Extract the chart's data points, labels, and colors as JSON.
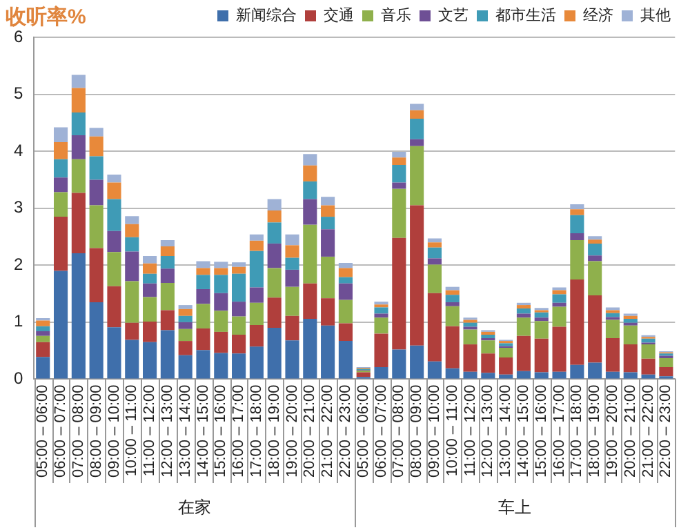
{
  "chart_data": {
    "type": "bar",
    "stacked": true,
    "title": "收听率%",
    "categories": [
      "05:00 – 06:00",
      "06:00 – 07:00",
      "07:00 – 08:00",
      "08:00 – 09:00",
      "09:00 – 10:00",
      "10:00 – 11:00",
      "11:00 – 12:00",
      "12:00 – 13:00",
      "13:00 – 14:00",
      "14:00 – 15:00",
      "15:00 – 16:00",
      "16:00 – 17:00",
      "17:00 – 18:00",
      "18:00 – 19:00",
      "19:00 – 20:00",
      "20:00 – 21:00",
      "21:00 – 22:00",
      "22:00 – 23:00",
      "05:00 – 06:00",
      "06:00 – 07:00",
      "07:00 – 08:00",
      "08:00 – 09:00",
      "09:00 – 10:00",
      "10:00 – 11:00",
      "11:00 – 12:00",
      "12:00 – 13:00",
      "13:00 – 14:00",
      "14:00 – 15:00",
      "15:00 – 16:00",
      "16:00 – 17:00",
      "17:00 – 18:00",
      "18:00 – 19:00",
      "19:00 – 20:00",
      "20:00 – 21:00",
      "21:00 – 22:00",
      "22:00 – 23:00"
    ],
    "annotations": [
      "在家",
      "车上"
    ],
    "series": [
      {
        "name": "新闻综合",
        "color": "#3f6fab",
        "values": [
          0.39,
          1.9,
          2.21,
          1.35,
          0.91,
          0.69,
          0.65,
          0.86,
          0.42,
          0.51,
          0.46,
          0.45,
          0.57,
          0.9,
          0.68,
          1.06,
          0.94,
          0.67,
          0.04,
          0.21,
          0.52,
          0.59,
          0.31,
          0.19,
          0.13,
          0.11,
          0.08,
          0.14,
          0.12,
          0.13,
          0.25,
          0.29,
          0.13,
          0.12,
          0.08,
          0.05
        ]
      },
      {
        "name": "交通",
        "color": "#b03f3c",
        "values": [
          0.26,
          0.95,
          1.06,
          0.95,
          0.72,
          0.3,
          0.36,
          0.35,
          0.25,
          0.38,
          0.37,
          0.33,
          0.38,
          0.53,
          0.43,
          0.62,
          0.48,
          0.31,
          0.08,
          0.59,
          1.96,
          2.46,
          1.2,
          0.74,
          0.48,
          0.34,
          0.3,
          0.62,
          0.59,
          0.79,
          1.5,
          1.18,
          0.59,
          0.49,
          0.28,
          0.16
        ]
      },
      {
        "name": "音乐",
        "color": "#8fb04c",
        "values": [
          0.11,
          0.43,
          0.59,
          0.75,
          0.6,
          0.73,
          0.43,
          0.48,
          0.21,
          0.43,
          0.37,
          0.32,
          0.39,
          0.52,
          0.51,
          1.03,
          0.73,
          0.41,
          0.03,
          0.28,
          0.86,
          1.04,
          0.5,
          0.35,
          0.26,
          0.23,
          0.17,
          0.32,
          0.31,
          0.35,
          0.69,
          0.6,
          0.32,
          0.33,
          0.25,
          0.16
        ]
      },
      {
        "name": "文艺",
        "color": "#6e4f95",
        "values": [
          0.08,
          0.26,
          0.42,
          0.45,
          0.37,
          0.52,
          0.24,
          0.25,
          0.12,
          0.26,
          0.31,
          0.26,
          0.27,
          0.43,
          0.3,
          0.45,
          0.48,
          0.29,
          0.01,
          0.07,
          0.11,
          0.12,
          0.11,
          0.07,
          0.05,
          0.04,
          0.03,
          0.07,
          0.06,
          0.07,
          0.12,
          0.1,
          0.05,
          0.05,
          0.03,
          0.04
        ]
      },
      {
        "name": "都市生活",
        "color": "#3f9bb6",
        "values": [
          0.09,
          0.32,
          0.4,
          0.41,
          0.56,
          0.25,
          0.17,
          0.22,
          0.11,
          0.25,
          0.32,
          0.49,
          0.64,
          0.37,
          0.21,
          0.31,
          0.22,
          0.11,
          0.02,
          0.11,
          0.31,
          0.36,
          0.19,
          0.13,
          0.07,
          0.06,
          0.05,
          0.09,
          0.09,
          0.15,
          0.32,
          0.21,
          0.07,
          0.07,
          0.07,
          0.04
        ]
      },
      {
        "name": "经济",
        "color": "#e8893a",
        "values": [
          0.1,
          0.3,
          0.43,
          0.35,
          0.29,
          0.23,
          0.18,
          0.17,
          0.12,
          0.12,
          0.12,
          0.12,
          0.18,
          0.21,
          0.22,
          0.28,
          0.2,
          0.16,
          0.02,
          0.05,
          0.13,
          0.15,
          0.09,
          0.08,
          0.05,
          0.05,
          0.04,
          0.06,
          0.04,
          0.07,
          0.1,
          0.07,
          0.05,
          0.05,
          0.03,
          0.02
        ]
      },
      {
        "name": "其他",
        "color": "#9fb2d6",
        "values": [
          0.04,
          0.26,
          0.23,
          0.15,
          0.14,
          0.14,
          0.13,
          0.11,
          0.07,
          0.12,
          0.11,
          0.08,
          0.11,
          0.2,
          0.19,
          0.2,
          0.15,
          0.09,
          0.01,
          0.05,
          0.1,
          0.11,
          0.07,
          0.06,
          0.04,
          0.03,
          0.02,
          0.04,
          0.04,
          0.05,
          0.09,
          0.06,
          0.05,
          0.04,
          0.03,
          0.02
        ]
      }
    ],
    "ylim": [
      0,
      6
    ],
    "yticks": [
      0,
      1,
      2,
      3,
      4,
      5,
      6
    ],
    "grid": "y",
    "legend": "top right"
  }
}
